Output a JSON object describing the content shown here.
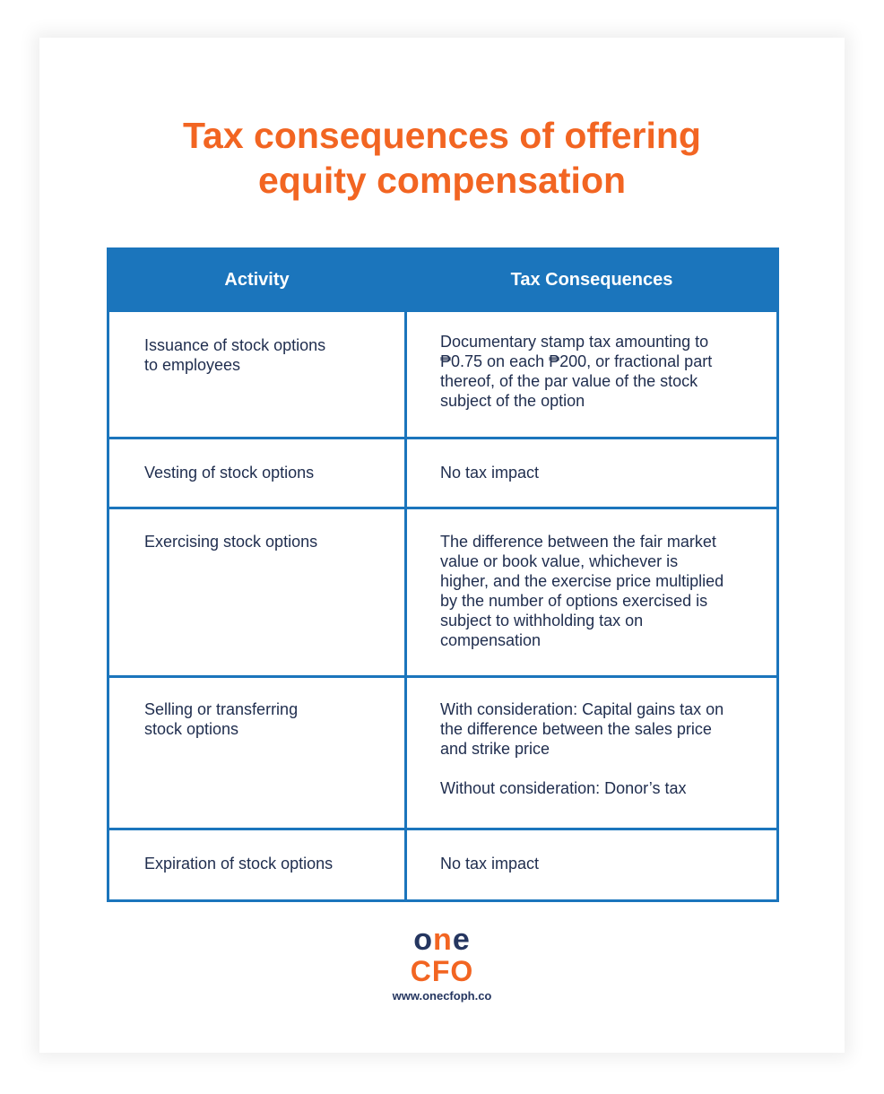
{
  "title": {
    "line1": "Tax consequences of offering",
    "line2": "equity compensation"
  },
  "table": {
    "headers": [
      "Activity",
      "Tax Consequences"
    ],
    "rows": [
      {
        "activity": "Issuance of stock options\nto employees",
        "consequence": "Documentary stamp tax amounting to\n₱0.75 on each ₱200, or fractional part\nthereof, of the par value of the stock\nsubject of the option"
      },
      {
        "activity": "Vesting of stock options",
        "consequence": "No tax impact"
      },
      {
        "activity": "Exercising stock options",
        "consequence": "The difference between the fair market\nvalue or book value, whichever is\nhigher, and the exercise price multiplied\nby the number of options exercised is\nsubject to withholding tax on\ncompensation"
      },
      {
        "activity": "Selling or transferring\nstock options",
        "consequence": "With consideration: Capital gains tax on\nthe difference between the sales price\nand strike price",
        "consequence_2": "Without consideration: Donor’s tax"
      },
      {
        "activity": "Expiration of stock options",
        "consequence": "No tax impact"
      }
    ]
  },
  "logo": {
    "one_a": "o",
    "one_b": "n",
    "one_c": "e",
    "cfo": "CFO",
    "url": "www.onecfoph.co"
  },
  "colors": {
    "accent": "#f26522",
    "table_blue": "#1b75bc",
    "text_navy": "#1f2d4e"
  }
}
